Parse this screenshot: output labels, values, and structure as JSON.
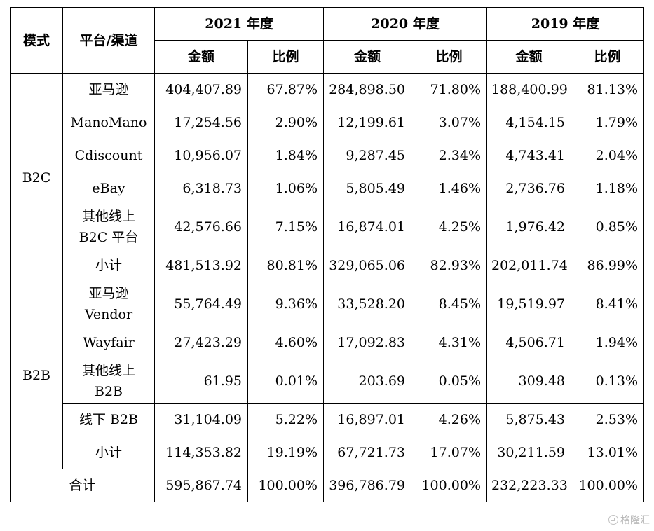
{
  "header": {
    "mode": "模式",
    "channel": "平台/渠道",
    "years": [
      "2021 年度",
      "2020 年度",
      "2019 年度"
    ],
    "amount": "金额",
    "ratio": "比例"
  },
  "b2c": {
    "label": "B2C",
    "rows": [
      {
        "name": "亚马逊",
        "v": [
          "404,407.89",
          "67.87%",
          "284,898.50",
          "71.80%",
          "188,400.99",
          "81.13%"
        ]
      },
      {
        "name": "ManoMano",
        "v": [
          "17,254.56",
          "2.90%",
          "12,199.61",
          "3.07%",
          "4,154.15",
          "1.79%"
        ]
      },
      {
        "name": "Cdiscount",
        "v": [
          "10,956.07",
          "1.84%",
          "9,287.45",
          "2.34%",
          "4,743.41",
          "2.04%"
        ]
      },
      {
        "name": "eBay",
        "v": [
          "6,318.73",
          "1.06%",
          "5,805.49",
          "1.46%",
          "2,736.76",
          "1.18%"
        ]
      },
      {
        "name_l1": "其他线上",
        "name_l2": "B2C 平台",
        "v": [
          "42,576.66",
          "7.15%",
          "16,874.01",
          "4.25%",
          "1,976.42",
          "0.85%"
        ]
      }
    ],
    "subtotal": {
      "name": "小计",
      "v": [
        "481,513.92",
        "80.81%",
        "329,065.06",
        "82.93%",
        "202,011.74",
        "86.99%"
      ]
    }
  },
  "b2b": {
    "label": "B2B",
    "rows": [
      {
        "name_l1": "亚马逊",
        "name_l2": "Vendor",
        "v": [
          "55,764.49",
          "9.36%",
          "33,528.20",
          "8.45%",
          "19,519.97",
          "8.41%"
        ]
      },
      {
        "name": "Wayfair",
        "v": [
          "27,423.29",
          "4.60%",
          "17,092.83",
          "4.31%",
          "4,506.71",
          "1.94%"
        ]
      },
      {
        "name_l1": "其他线上",
        "name_l2": "B2B",
        "v": [
          "61.95",
          "0.01%",
          "203.69",
          "0.05%",
          "309.48",
          "0.13%"
        ]
      },
      {
        "name": "线下 B2B",
        "v": [
          "31,104.09",
          "5.22%",
          "16,897.01",
          "4.26%",
          "5,875.43",
          "2.53%"
        ]
      }
    ],
    "subtotal": {
      "name": "小计",
      "v": [
        "114,353.82",
        "19.19%",
        "67,721.73",
        "17.07%",
        "30,211.59",
        "13.01%"
      ]
    }
  },
  "total": {
    "name": "合计",
    "v": [
      "595,867.74",
      "100.00%",
      "396,786.79",
      "100.00%",
      "232,223.33",
      "100.00%"
    ]
  },
  "watermark": {
    "text": "格隆汇",
    "icon": "gelonghui-logo-icon"
  }
}
